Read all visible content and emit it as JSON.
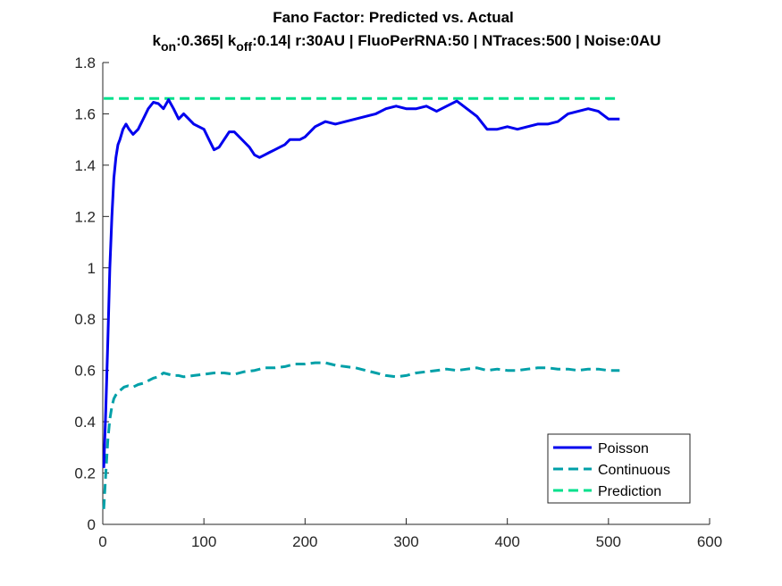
{
  "chart_data": {
    "type": "line",
    "title": "Fano Factor: Predicted vs. Actual",
    "subtitle": {
      "k_on_label": "k",
      "k_on_sub": "on",
      "k_on_value": ":0.365| k",
      "k_off_sub": "off",
      "rest": ":0.14| r:30AU | FluoPerRNA:50 | NTraces:500 | Noise:0AU"
    },
    "xlim": [
      0,
      600
    ],
    "ylim": [
      0,
      1.8
    ],
    "xticks": [
      0,
      100,
      200,
      300,
      400,
      500,
      600
    ],
    "xtick_labels": [
      "0",
      "100",
      "200",
      "300",
      "400",
      "500",
      "600"
    ],
    "yticks": [
      0,
      0.2,
      0.4,
      0.6,
      0.8,
      1,
      1.2,
      1.4,
      1.6,
      1.8
    ],
    "ytick_labels": [
      "0",
      "0.2",
      "0.4",
      "0.6",
      "0.8",
      "1",
      "1.2",
      "1.4",
      "1.6",
      "1.8"
    ],
    "grid": false,
    "legend_position": "bottom-right",
    "series": [
      {
        "name": "Poisson",
        "style": "solid",
        "color": "#0000ee",
        "x": [
          1,
          3,
          5,
          7,
          9,
          11,
          13,
          15,
          17,
          20,
          23,
          26,
          30,
          35,
          40,
          45,
          50,
          55,
          60,
          65,
          70,
          75,
          80,
          85,
          90,
          95,
          100,
          105,
          110,
          115,
          120,
          125,
          130,
          135,
          140,
          145,
          150,
          155,
          160,
          165,
          170,
          175,
          180,
          185,
          190,
          195,
          200,
          210,
          220,
          230,
          240,
          250,
          260,
          270,
          280,
          290,
          300,
          310,
          320,
          330,
          340,
          350,
          360,
          370,
          380,
          390,
          400,
          410,
          420,
          430,
          440,
          450,
          460,
          470,
          480,
          490,
          500,
          511
        ],
        "y": [
          0.22,
          0.45,
          0.72,
          1.0,
          1.2,
          1.35,
          1.43,
          1.48,
          1.5,
          1.54,
          1.56,
          1.54,
          1.52,
          1.54,
          1.58,
          1.62,
          1.645,
          1.64,
          1.62,
          1.655,
          1.62,
          1.58,
          1.6,
          1.58,
          1.56,
          1.55,
          1.54,
          1.5,
          1.46,
          1.47,
          1.5,
          1.53,
          1.53,
          1.51,
          1.49,
          1.47,
          1.44,
          1.43,
          1.44,
          1.45,
          1.46,
          1.47,
          1.48,
          1.5,
          1.5,
          1.5,
          1.51,
          1.55,
          1.57,
          1.56,
          1.57,
          1.58,
          1.59,
          1.6,
          1.62,
          1.63,
          1.62,
          1.62,
          1.63,
          1.61,
          1.63,
          1.65,
          1.62,
          1.59,
          1.54,
          1.54,
          1.55,
          1.54,
          1.55,
          1.56,
          1.56,
          1.57,
          1.6,
          1.61,
          1.62,
          1.61,
          1.58,
          1.58
        ]
      },
      {
        "name": "Continuous",
        "style": "dashed",
        "color": "#00a0a8",
        "x": [
          1,
          3,
          5,
          7,
          9,
          11,
          13,
          15,
          18,
          21,
          25,
          30,
          35,
          40,
          45,
          50,
          55,
          60,
          65,
          70,
          75,
          80,
          90,
          100,
          110,
          120,
          130,
          140,
          150,
          160,
          170,
          180,
          190,
          200,
          210,
          220,
          230,
          240,
          250,
          260,
          270,
          280,
          290,
          300,
          310,
          320,
          330,
          340,
          350,
          360,
          370,
          380,
          390,
          400,
          410,
          420,
          430,
          440,
          450,
          460,
          470,
          480,
          490,
          500,
          511
        ],
        "y": [
          0.06,
          0.2,
          0.33,
          0.41,
          0.46,
          0.49,
          0.505,
          0.515,
          0.525,
          0.535,
          0.54,
          0.535,
          0.545,
          0.55,
          0.56,
          0.57,
          0.575,
          0.59,
          0.585,
          0.58,
          0.58,
          0.575,
          0.58,
          0.585,
          0.59,
          0.59,
          0.585,
          0.595,
          0.6,
          0.61,
          0.61,
          0.615,
          0.625,
          0.625,
          0.63,
          0.63,
          0.62,
          0.615,
          0.61,
          0.6,
          0.59,
          0.58,
          0.575,
          0.58,
          0.59,
          0.595,
          0.6,
          0.605,
          0.6,
          0.605,
          0.61,
          0.6,
          0.605,
          0.6,
          0.6,
          0.605,
          0.61,
          0.61,
          0.605,
          0.605,
          0.6,
          0.605,
          0.605,
          0.6,
          0.6
        ]
      },
      {
        "name": "Prediction",
        "style": "dashed",
        "color": "#00e08c",
        "x": [
          1,
          511
        ],
        "y": [
          1.66,
          1.66
        ]
      }
    ]
  }
}
